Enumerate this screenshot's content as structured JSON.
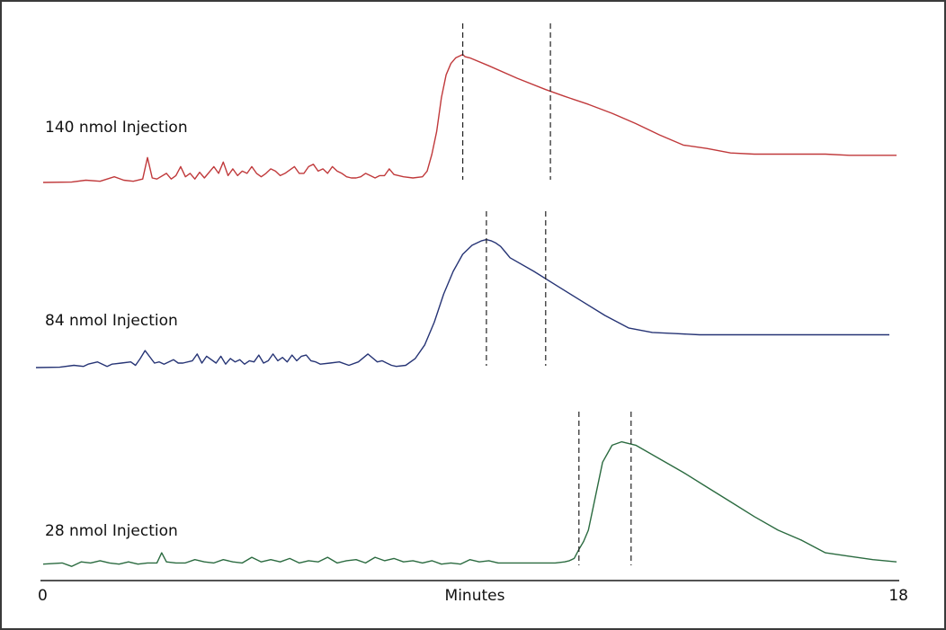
{
  "chart_data": {
    "type": "line",
    "title": "",
    "xlabel": "Minutes",
    "ylabel": "",
    "xlim": [
      0,
      18
    ],
    "x_ticks": [
      "0",
      "18"
    ],
    "grid": false,
    "legend": "none",
    "series": [
      {
        "name": "140 nmol Injection",
        "color": "#c0393b",
        "x": [
          0.0,
          0.6,
          0.9,
          1.2,
          1.5,
          1.7,
          1.9,
          2.1,
          2.2,
          2.3,
          2.4,
          2.6,
          2.7,
          2.8,
          2.9,
          3.0,
          3.1,
          3.2,
          3.3,
          3.4,
          3.6,
          3.7,
          3.8,
          3.9,
          4.0,
          4.1,
          4.2,
          4.3,
          4.4,
          4.5,
          4.6,
          4.7,
          4.8,
          4.9,
          5.0,
          5.1,
          5.3,
          5.4,
          5.5,
          5.6,
          5.7,
          5.8,
          5.9,
          6.0,
          6.1,
          6.2,
          6.3,
          6.4,
          6.5,
          6.6,
          6.7,
          6.8,
          6.9,
          7.0,
          7.1,
          7.2,
          7.3,
          7.4,
          7.6,
          7.8,
          8.0,
          8.1,
          8.2,
          8.3,
          8.4,
          8.5,
          8.6,
          8.7,
          8.8,
          8.85,
          8.9,
          9.0,
          9.4,
          10.0,
          10.6,
          11.0,
          11.5,
          12.0,
          12.5,
          13.0,
          13.5,
          14.0,
          14.5,
          15.0,
          15.5,
          16.0,
          16.5,
          17.0,
          17.5,
          18.0
        ],
        "y": [
          0.0,
          0.003,
          0.02,
          0.01,
          0.05,
          0.02,
          0.01,
          0.03,
          0.22,
          0.04,
          0.03,
          0.08,
          0.03,
          0.06,
          0.14,
          0.05,
          0.08,
          0.03,
          0.09,
          0.04,
          0.14,
          0.08,
          0.18,
          0.06,
          0.12,
          0.06,
          0.1,
          0.08,
          0.14,
          0.08,
          0.05,
          0.08,
          0.12,
          0.1,
          0.06,
          0.08,
          0.14,
          0.08,
          0.08,
          0.14,
          0.16,
          0.1,
          0.12,
          0.08,
          0.14,
          0.1,
          0.08,
          0.05,
          0.04,
          0.04,
          0.05,
          0.08,
          0.06,
          0.04,
          0.06,
          0.06,
          0.12,
          0.07,
          0.05,
          0.04,
          0.05,
          0.1,
          0.25,
          0.45,
          0.75,
          0.95,
          1.05,
          1.1,
          1.12,
          1.13,
          1.11,
          1.1,
          1.03,
          0.92,
          0.82,
          0.76,
          0.69,
          0.61,
          0.52,
          0.42,
          0.33,
          0.3,
          0.26,
          0.25,
          0.25,
          0.25,
          0.25,
          0.24,
          0.24,
          0.24
        ]
      },
      {
        "name": "84 nmol Injection",
        "color": "#263475",
        "x": [
          0.0,
          0.5,
          0.8,
          1.0,
          1.1,
          1.3,
          1.5,
          1.6,
          1.8,
          2.0,
          2.1,
          2.2,
          2.3,
          2.5,
          2.6,
          2.7,
          2.9,
          3.0,
          3.1,
          3.3,
          3.4,
          3.5,
          3.6,
          3.8,
          3.9,
          4.0,
          4.1,
          4.2,
          4.3,
          4.4,
          4.5,
          4.6,
          4.7,
          4.8,
          4.9,
          5.0,
          5.1,
          5.2,
          5.3,
          5.4,
          5.5,
          5.6,
          5.7,
          5.8,
          5.9,
          6.0,
          6.2,
          6.4,
          6.6,
          6.8,
          7.0,
          7.2,
          7.3,
          7.4,
          7.5,
          7.6,
          7.8,
          8.0,
          8.2,
          8.4,
          8.6,
          8.8,
          9.0,
          9.2,
          9.4,
          9.5,
          9.6,
          9.7,
          9.8,
          9.9,
          10.0,
          10.5,
          11.0,
          11.5,
          12.0,
          12.5,
          13.0,
          13.5,
          14.0,
          14.5,
          15.0,
          15.5,
          16.0,
          16.5,
          17.0,
          17.5,
          18.0
        ],
        "y": [
          0.0,
          0.003,
          0.02,
          0.01,
          0.03,
          0.05,
          0.01,
          0.03,
          0.04,
          0.05,
          0.02,
          0.08,
          0.15,
          0.04,
          0.05,
          0.03,
          0.07,
          0.04,
          0.04,
          0.06,
          0.12,
          0.04,
          0.1,
          0.04,
          0.1,
          0.03,
          0.08,
          0.05,
          0.07,
          0.03,
          0.06,
          0.05,
          0.11,
          0.04,
          0.06,
          0.12,
          0.06,
          0.09,
          0.05,
          0.11,
          0.06,
          0.1,
          0.11,
          0.06,
          0.05,
          0.03,
          0.04,
          0.05,
          0.02,
          0.05,
          0.12,
          0.05,
          0.06,
          0.04,
          0.02,
          0.01,
          0.02,
          0.08,
          0.2,
          0.4,
          0.65,
          0.85,
          1.0,
          1.08,
          1.12,
          1.13,
          1.12,
          1.1,
          1.07,
          1.02,
          0.97,
          0.85,
          0.72,
          0.59,
          0.46,
          0.35,
          0.31,
          0.3,
          0.29,
          0.29,
          0.29,
          0.29,
          0.29,
          0.29,
          0.29,
          0.29,
          0.29
        ]
      },
      {
        "name": "28 nmol Injection",
        "color": "#2b6b40",
        "x": [
          0.0,
          0.4,
          0.6,
          0.8,
          1.0,
          1.2,
          1.4,
          1.6,
          1.8,
          2.0,
          2.2,
          2.4,
          2.5,
          2.6,
          2.8,
          3.0,
          3.2,
          3.4,
          3.6,
          3.8,
          4.0,
          4.2,
          4.4,
          4.6,
          4.8,
          5.0,
          5.2,
          5.4,
          5.6,
          5.8,
          6.0,
          6.2,
          6.4,
          6.6,
          6.8,
          7.0,
          7.2,
          7.4,
          7.6,
          7.8,
          8.0,
          8.2,
          8.4,
          8.6,
          8.8,
          9.0,
          9.2,
          9.4,
          9.6,
          10.0,
          10.4,
          10.6,
          10.8,
          11.0,
          11.1,
          11.2,
          11.3,
          11.4,
          11.5,
          11.6,
          11.8,
          12.0,
          12.2,
          12.5,
          13.0,
          13.5,
          14.0,
          14.5,
          15.0,
          15.5,
          16.0,
          16.5,
          17.0,
          17.5,
          18.0
        ],
        "y": [
          0.05,
          0.06,
          0.03,
          0.07,
          0.06,
          0.08,
          0.06,
          0.05,
          0.07,
          0.05,
          0.06,
          0.06,
          0.15,
          0.07,
          0.06,
          0.06,
          0.09,
          0.07,
          0.06,
          0.09,
          0.07,
          0.06,
          0.11,
          0.07,
          0.09,
          0.07,
          0.1,
          0.06,
          0.08,
          0.07,
          0.11,
          0.06,
          0.08,
          0.09,
          0.06,
          0.11,
          0.08,
          0.1,
          0.07,
          0.08,
          0.06,
          0.08,
          0.05,
          0.06,
          0.05,
          0.09,
          0.07,
          0.08,
          0.06,
          0.06,
          0.06,
          0.06,
          0.06,
          0.07,
          0.08,
          0.1,
          0.18,
          0.25,
          0.35,
          0.55,
          0.95,
          1.1,
          1.13,
          1.1,
          0.98,
          0.86,
          0.73,
          0.6,
          0.47,
          0.35,
          0.26,
          0.15,
          0.12,
          0.09,
          0.07
        ]
      }
    ],
    "markers": [
      {
        "series": "140 nmol Injection",
        "x": [
          8.85,
          10.7
        ]
      },
      {
        "series": "84 nmol Injection",
        "x": [
          9.5,
          10.75
        ]
      },
      {
        "series": "28 nmol Injection",
        "x": [
          11.3,
          12.4
        ]
      }
    ]
  }
}
